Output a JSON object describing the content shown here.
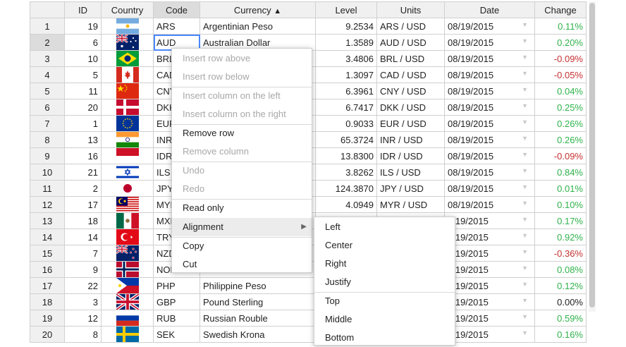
{
  "columns": [
    "",
    "ID",
    "Country",
    "Code",
    "Currency",
    "Level",
    "Units",
    "Date",
    "Change"
  ],
  "sort_indicator": "▲",
  "date_arrow": "▼",
  "rows": [
    {
      "row": "1",
      "id": "19",
      "country": "Argentina",
      "flag": "ar",
      "code": "ARS",
      "currency": "Argentinian Peso",
      "level": "9.2534",
      "units": "ARS / USD",
      "date": "08/19/2015",
      "change": "0.11%",
      "trend": "pos"
    },
    {
      "row": "2",
      "id": "6",
      "country": "Australia",
      "flag": "au",
      "code": "AUD",
      "currency": "Australian Dollar",
      "level": "1.3589",
      "units": "AUD / USD",
      "date": "08/19/2015",
      "change": "0.20%",
      "trend": "pos"
    },
    {
      "row": "3",
      "id": "10",
      "country": "Brazil",
      "flag": "br",
      "code": "BRL",
      "currency": "",
      "level": "3.4806",
      "units": "BRL / USD",
      "date": "08/19/2015",
      "change": "-0.09%",
      "trend": "neg"
    },
    {
      "row": "4",
      "id": "5",
      "country": "Canada",
      "flag": "ca",
      "code": "CAD",
      "currency": "",
      "level": "1.3097",
      "units": "CAD / USD",
      "date": "08/19/2015",
      "change": "-0.05%",
      "trend": "neg"
    },
    {
      "row": "5",
      "id": "11",
      "country": "China",
      "flag": "cn",
      "code": "CNY",
      "currency": "",
      "level": "6.3961",
      "units": "CNY / USD",
      "date": "08/19/2015",
      "change": "0.04%",
      "trend": "pos"
    },
    {
      "row": "6",
      "id": "20",
      "country": "Denmark",
      "flag": "dk",
      "code": "DKK",
      "currency": "",
      "level": "6.7417",
      "units": "DKK / USD",
      "date": "08/19/2015",
      "change": "0.25%",
      "trend": "pos"
    },
    {
      "row": "7",
      "id": "1",
      "country": "European Union",
      "flag": "eu",
      "code": "EUR",
      "currency": "",
      "level": "0.9033",
      "units": "EUR / USD",
      "date": "08/19/2015",
      "change": "0.26%",
      "trend": "pos"
    },
    {
      "row": "8",
      "id": "13",
      "country": "India",
      "flag": "in",
      "code": "INR",
      "currency": "",
      "level": "65.3724",
      "units": "INR / USD",
      "date": "08/19/2015",
      "change": "0.26%",
      "trend": "pos"
    },
    {
      "row": "9",
      "id": "16",
      "country": "Indonesia",
      "flag": "id",
      "code": "IDR",
      "currency": "",
      "level": "13.8300",
      "units": "IDR / USD",
      "date": "08/19/2015",
      "change": "-0.09%",
      "trend": "neg"
    },
    {
      "row": "10",
      "id": "21",
      "country": "Israel",
      "flag": "il",
      "code": "ILS",
      "currency": "",
      "level": "3.8262",
      "units": "ILS / USD",
      "date": "08/19/2015",
      "change": "0.84%",
      "trend": "pos"
    },
    {
      "row": "11",
      "id": "2",
      "country": "Japan",
      "flag": "jp",
      "code": "JPY",
      "currency": "",
      "level": "124.3870",
      "units": "JPY / USD",
      "date": "08/19/2015",
      "change": "0.01%",
      "trend": "pos"
    },
    {
      "row": "12",
      "id": "17",
      "country": "Malaysia",
      "flag": "my",
      "code": "MYR",
      "currency": "",
      "level": "4.0949",
      "units": "MYR / USD",
      "date": "08/19/2015",
      "change": "0.10%",
      "trend": "pos"
    },
    {
      "row": "13",
      "id": "18",
      "country": "Mexico",
      "flag": "mx",
      "code": "MXN",
      "currency": "",
      "level": "",
      "units": "",
      "date": "8/19/2015",
      "change": "0.17%",
      "trend": "pos"
    },
    {
      "row": "14",
      "id": "14",
      "country": "Turkey",
      "flag": "tr",
      "code": "TRY",
      "currency": "",
      "level": "",
      "units": "",
      "date": "8/19/2015",
      "change": "0.92%",
      "trend": "pos"
    },
    {
      "row": "15",
      "id": "7",
      "country": "New Zealand",
      "flag": "nz",
      "code": "NZD",
      "currency": "",
      "level": "",
      "units": "",
      "date": "8/19/2015",
      "change": "-0.36%",
      "trend": "neg"
    },
    {
      "row": "16",
      "id": "9",
      "country": "Norway",
      "flag": "no",
      "code": "NOK",
      "currency": "",
      "level": "",
      "units": "",
      "date": "8/19/2015",
      "change": "0.08%",
      "trend": "pos"
    },
    {
      "row": "17",
      "id": "22",
      "country": "Philippines",
      "flag": "ph",
      "code": "PHP",
      "currency": "Philippine Peso",
      "level": "",
      "units": "",
      "date": "8/19/2015",
      "change": "0.12%",
      "trend": "pos"
    },
    {
      "row": "18",
      "id": "3",
      "country": "United Kingdom",
      "flag": "gb",
      "code": "GBP",
      "currency": "Pound Sterling",
      "level": "",
      "units": "",
      "date": "8/19/2015",
      "change": "0.00%",
      "trend": "zero"
    },
    {
      "row": "19",
      "id": "12",
      "country": "Russia",
      "flag": "ru",
      "code": "RUB",
      "currency": "Russian Rouble",
      "level": "",
      "units": "",
      "date": "8/19/2015",
      "change": "0.59%",
      "trend": "pos"
    },
    {
      "row": "20",
      "id": "8",
      "country": "Sweden",
      "flag": "se",
      "code": "SEK",
      "currency": "Swedish Krona",
      "level": "",
      "units": "",
      "date": "8/19/2015",
      "change": "0.16%",
      "trend": "pos"
    }
  ],
  "context_menu": {
    "items": [
      {
        "label": "Insert row above",
        "disabled": true
      },
      {
        "label": "Insert row below",
        "disabled": true
      },
      {
        "separator": true
      },
      {
        "label": "Insert column on the left",
        "disabled": true
      },
      {
        "label": "Insert column on the right",
        "disabled": true
      },
      {
        "separator": true
      },
      {
        "label": "Remove row",
        "disabled": false
      },
      {
        "label": "Remove column",
        "disabled": true
      },
      {
        "separator": true
      },
      {
        "label": "Undo",
        "disabled": true
      },
      {
        "label": "Redo",
        "disabled": true
      },
      {
        "separator": true
      },
      {
        "label": "Read only",
        "disabled": false
      },
      {
        "separator": true
      },
      {
        "label": "Alignment",
        "disabled": false,
        "submenu": true,
        "highlighted": true
      },
      {
        "separator": true
      },
      {
        "label": "Copy",
        "disabled": false
      },
      {
        "label": "Cut",
        "disabled": false
      }
    ],
    "submenu_arrow": "▶"
  },
  "alignment_menu": {
    "items": [
      {
        "label": "Left"
      },
      {
        "label": "Center"
      },
      {
        "label": "Right"
      },
      {
        "label": "Justify"
      },
      {
        "separator": true
      },
      {
        "label": "Top"
      },
      {
        "label": "Middle"
      },
      {
        "label": "Bottom"
      }
    ]
  },
  "colors": {
    "positive": "#2fb24a",
    "negative": "#c53030",
    "selection": "#4b89ff",
    "header_bg": "#f0f0f0"
  }
}
